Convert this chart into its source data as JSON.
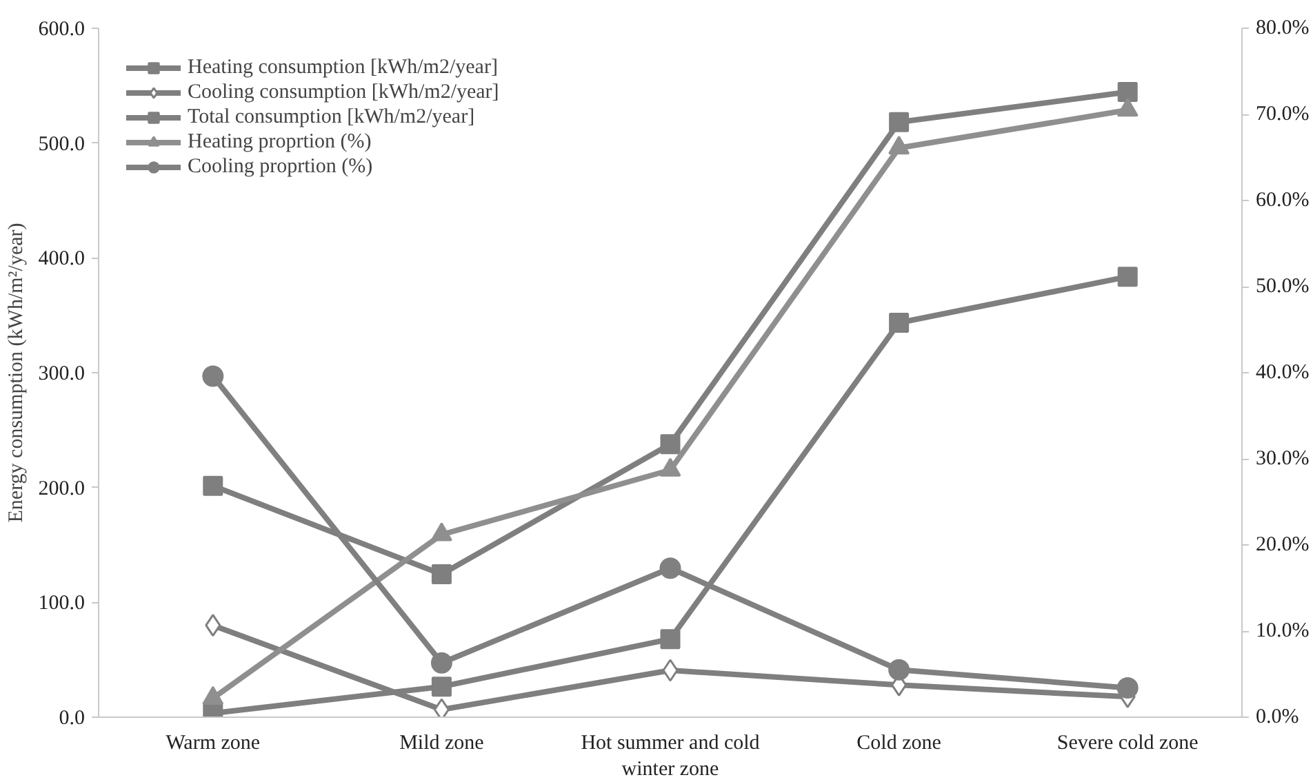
{
  "chart_data": {
    "type": "line",
    "ylabel": "Energy consumption (kWh/m²/year)",
    "categories": [
      "Warm zone",
      "Mild zone",
      "Hot summer and cold winter zone",
      "Cold zone",
      "Severe cold zone"
    ],
    "ylim": [
      0,
      600
    ],
    "yticks": [
      {
        "value": 0,
        "label": "0.0"
      },
      {
        "value": 100,
        "label": "100.0"
      },
      {
        "value": 200,
        "label": "200.0"
      },
      {
        "value": 300,
        "label": "300.0"
      },
      {
        "value": 400,
        "label": "400.0"
      },
      {
        "value": 500,
        "label": "500.0"
      },
      {
        "value": 600,
        "label": "600.0"
      }
    ],
    "y2lim": [
      0,
      80
    ],
    "y2ticks": [
      {
        "value": 0,
        "label": "0.0%"
      },
      {
        "value": 10,
        "label": "10.0%"
      },
      {
        "value": 20,
        "label": "20.0%"
      },
      {
        "value": 30,
        "label": "30.0%"
      },
      {
        "value": 40,
        "label": "40.0%"
      },
      {
        "value": 50,
        "label": "50.0%"
      },
      {
        "value": 60,
        "label": "60.0%"
      },
      {
        "value": 70,
        "label": "70.0%"
      },
      {
        "value": 80,
        "label": "80.0%"
      }
    ],
    "grid": false,
    "legend": "top left",
    "series": [
      {
        "name": "Heating consumption [kWh/m2/year]",
        "color": "#7f7f7f",
        "marker": "square",
        "values": [
          3.5,
          26.6,
          68,
          343.5,
          383.6
        ]
      },
      {
        "name": "Cooling consumption [kWh/m2/year]",
        "color": "#7f7f7f",
        "marker": "diamond",
        "values": [
          80,
          6.6,
          40.8,
          28,
          17.8
        ]
      },
      {
        "name": "Total consumption [kWh/m2/year]",
        "color": "#7f7f7f",
        "marker": "square",
        "values": [
          201.4,
          124.5,
          237.7,
          518.2,
          544.5
        ]
      },
      {
        "name": "Heating proprtion (%)",
        "color": "#8f8f8f",
        "marker": "triangle",
        "axis": "y2",
        "values": [
          2.2,
          21.2,
          28.7,
          66.1,
          70.5
        ]
      },
      {
        "name": "Cooling proprtion (%)",
        "color": "#808080",
        "marker": "circle",
        "axis": "y2",
        "values": [
          39.6,
          6.3,
          17.3,
          5.5,
          3.4
        ]
      }
    ]
  }
}
